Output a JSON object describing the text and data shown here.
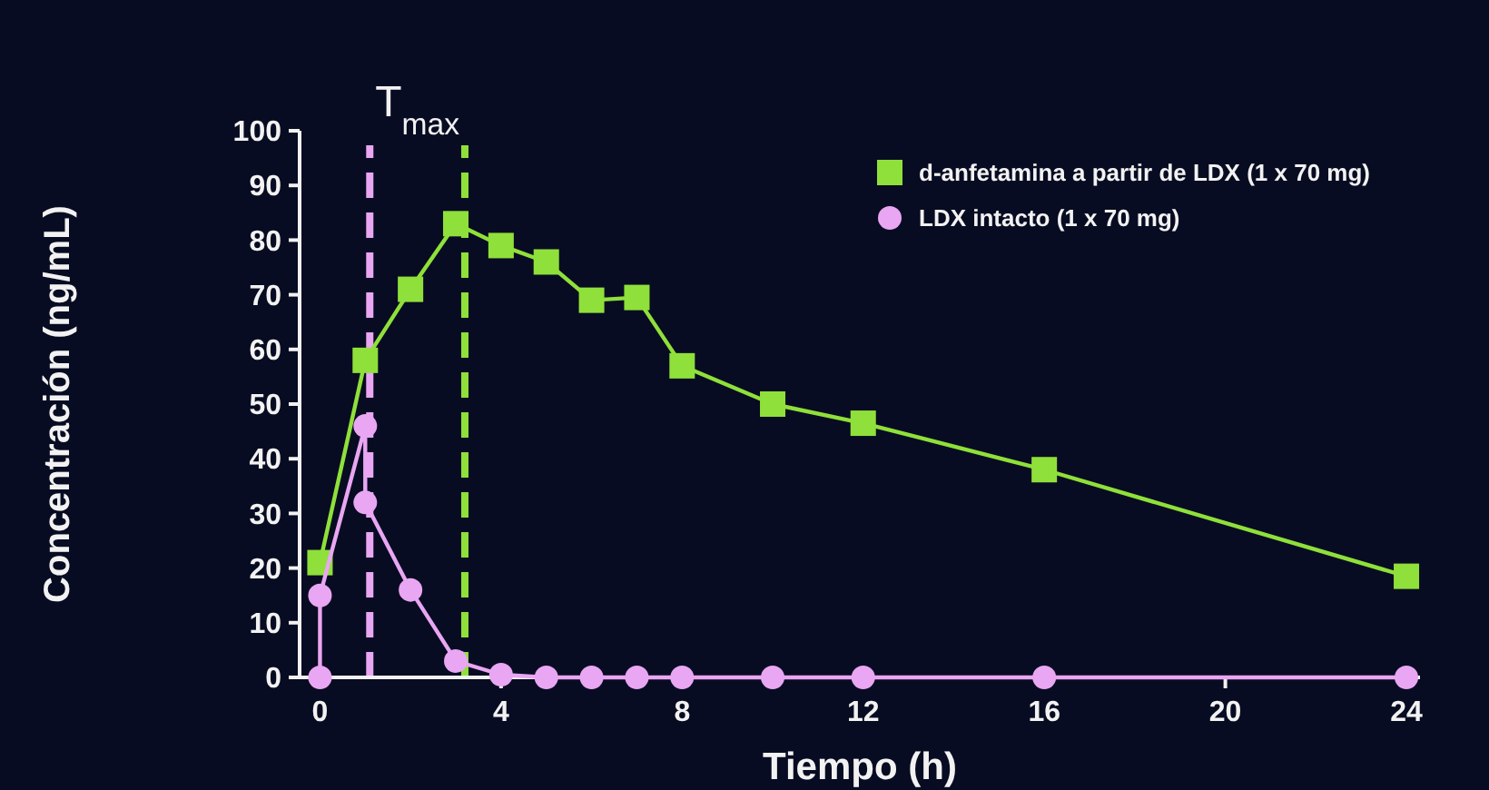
{
  "chart_data": {
    "type": "line",
    "xlabel": "Tiempo (h)",
    "ylabel": "Concentración (ng/mL)",
    "xlim": [
      -0.45,
      24.3
    ],
    "xticks": [
      0,
      4,
      8,
      12,
      16,
      20,
      24
    ],
    "ylim": [
      0,
      100
    ],
    "yticks": [
      0,
      10,
      20,
      30,
      40,
      50,
      60,
      70,
      80,
      90,
      100
    ],
    "grid": false,
    "legend": "top right",
    "line_style": "solid",
    "series": [
      {
        "name": "d-anfetamina a partir de LDX  (1 x 70 mg)",
        "color": "#8fe03a",
        "marker": "square",
        "x": [
          0,
          1,
          2,
          3,
          4,
          5,
          6,
          7,
          8,
          10,
          12,
          16,
          24
        ],
        "values": [
          21,
          58,
          71,
          83,
          79,
          76,
          69,
          69.5,
          57,
          50,
          46.5,
          38,
          18.5
        ]
      },
      {
        "name": "LDX intacto (1 x 70 mg)",
        "color": "#e9a6f2",
        "marker": "circle",
        "x": [
          0,
          0,
          1,
          1,
          2,
          3,
          4,
          5,
          6,
          7,
          8,
          10,
          12,
          16,
          24
        ],
        "values": [
          0,
          15,
          46,
          32,
          16,
          3,
          0.5,
          0,
          0,
          0,
          0,
          0,
          0,
          0,
          0
        ]
      }
    ],
    "ref_lines": [
      {
        "axis": "x",
        "value": 1.1,
        "color": "#e9a6f2",
        "line_style": "dashed"
      },
      {
        "axis": "x",
        "value": 3.2,
        "color": "#8fe03a",
        "line_style": "dashed"
      }
    ],
    "annotations": [
      "T$_{max}$"
    ]
  }
}
